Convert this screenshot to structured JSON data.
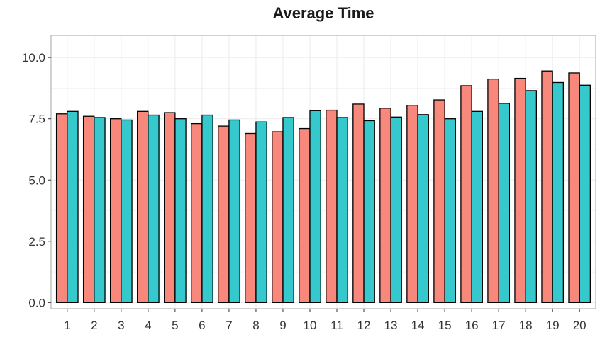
{
  "chart_data": {
    "type": "bar",
    "title": "Average Time",
    "xlabel": "",
    "ylabel": "",
    "categories": [
      "1",
      "2",
      "3",
      "4",
      "5",
      "6",
      "7",
      "8",
      "9",
      "10",
      "11",
      "12",
      "13",
      "14",
      "15",
      "16",
      "17",
      "18",
      "19",
      "20"
    ],
    "series": [
      {
        "color": "#f8877c",
        "values": [
          7.7,
          7.6,
          7.5,
          7.8,
          7.75,
          7.3,
          7.2,
          6.9,
          6.97,
          7.1,
          7.85,
          8.1,
          7.93,
          8.05,
          8.27,
          8.85,
          9.12,
          9.15,
          9.45,
          9.37
        ]
      },
      {
        "color": "#35c8cc",
        "values": [
          7.8,
          7.55,
          7.45,
          7.65,
          7.5,
          7.65,
          7.45,
          7.37,
          7.55,
          7.83,
          7.55,
          7.42,
          7.57,
          7.67,
          7.5,
          7.8,
          8.13,
          8.65,
          8.98,
          8.87
        ]
      }
    ],
    "ylim": [
      -0.25,
      10.9
    ],
    "yticks": [
      "0.0",
      "2.5",
      "5.0",
      "7.5",
      "10.0"
    ],
    "grid": true,
    "legend": "none"
  }
}
